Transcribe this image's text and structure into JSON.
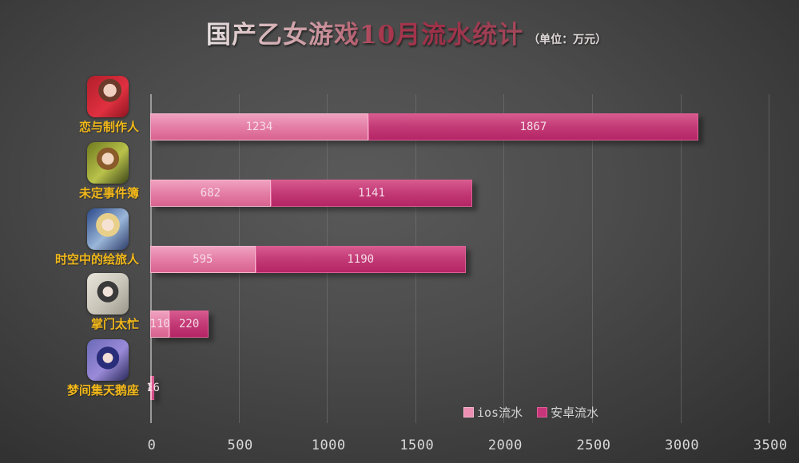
{
  "title": {
    "main": "国产乙女游戏10月流水统计",
    "unit": "（单位：万元）"
  },
  "legend": {
    "ios_label": "ios流水",
    "android_label": "安卓流水"
  },
  "colors": {
    "ios": "#e47ea6",
    "android": "#c23a76",
    "label": "#f2b81a",
    "background": "#4c4c4c"
  },
  "chart_data": {
    "type": "bar",
    "orientation": "horizontal",
    "stacked": true,
    "title": "国产乙女游戏10月流水统计（单位：万元）",
    "xlabel": "",
    "ylabel": "",
    "xlim": [
      0,
      3500
    ],
    "xticks": [
      "0",
      "500",
      "1000",
      "1500",
      "2000",
      "2500",
      "3000",
      "3500"
    ],
    "grid": true,
    "legend_position": "bottom-right",
    "categories": [
      "恋与制作人",
      "未定事件簿",
      "时空中的绘旅人",
      "掌门太忙",
      "梦间集天鹅座"
    ],
    "series": [
      {
        "name": "ios流水",
        "values": [
          1234,
          682,
          595,
          110,
          8
        ]
      },
      {
        "name": "安卓流水",
        "values": [
          1867,
          1141,
          1190,
          220,
          16
        ]
      }
    ]
  },
  "rows": [
    {
      "label": "恋与制作人",
      "icon": "game-icon-lianyuzhizuoren",
      "ios": "1234",
      "android": "1867"
    },
    {
      "label": "未定事件簿",
      "icon": "game-icon-weidingshijianbu",
      "ios": "682",
      "android": "1141"
    },
    {
      "label": "时空中的绘旅人",
      "icon": "game-icon-shikongzhongdehuilvren",
      "ios": "595",
      "android": "1190"
    },
    {
      "label": "掌门太忙",
      "icon": "game-icon-zhangmentaimang",
      "ios": "110",
      "android": "220"
    },
    {
      "label": "梦间集天鹅座",
      "icon": "game-icon-mengjianjitianezuo",
      "ios": "8",
      "android": "16"
    }
  ]
}
